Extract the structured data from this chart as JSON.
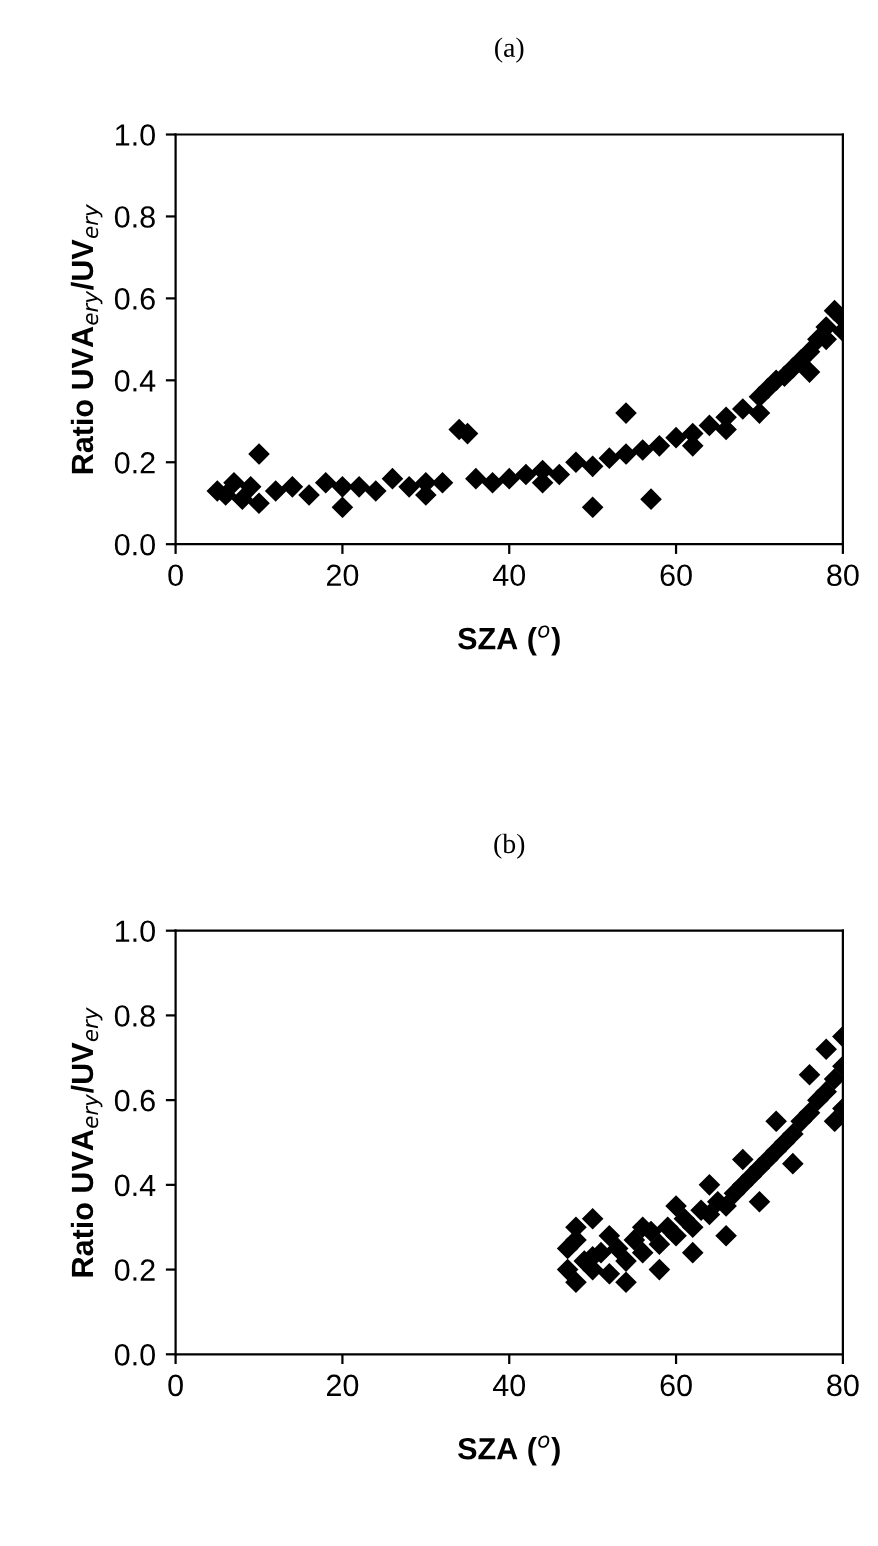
{
  "chart_data": [
    {
      "type": "scatter",
      "title": "(a)",
      "xlabel": "SZA ($^{o}$)",
      "ylabel": "Ratio UVA$_{ery}$/UV$_{ery}$",
      "marker": "diamond",
      "grid": false,
      "xlim": [
        0,
        80
      ],
      "ylim": [
        0,
        1
      ],
      "xticks": [
        0,
        20,
        40,
        60,
        80
      ],
      "yticks": [
        {
          "value": 0,
          "label": "0.0"
        },
        {
          "value": 0.2,
          "label": "0.2"
        },
        {
          "value": 0.4,
          "label": "0.4"
        },
        {
          "value": 0.6,
          "label": "0.6"
        },
        {
          "value": 0.8,
          "label": "0.8"
        },
        {
          "value": 1,
          "label": "1.0"
        }
      ],
      "series": [
        {
          "color": "#000000",
          "x": [
            5,
            6,
            7,
            8,
            9,
            10,
            10,
            12,
            14,
            16,
            18,
            20,
            20,
            22,
            24,
            26,
            28,
            30,
            32,
            34,
            35,
            36,
            38,
            40,
            42,
            44,
            46,
            48,
            50,
            50,
            52,
            54,
            54,
            56,
            57,
            58,
            60,
            62,
            64,
            66,
            68,
            70,
            71,
            72,
            73,
            74,
            75,
            76,
            77,
            78,
            79,
            80,
            76,
            78,
            80,
            70,
            66,
            62,
            44,
            30
          ],
          "values": [
            0.13,
            0.12,
            0.15,
            0.11,
            0.14,
            0.22,
            0.1,
            0.13,
            0.14,
            0.12,
            0.15,
            0.09,
            0.14,
            0.14,
            0.13,
            0.16,
            0.14,
            0.15,
            0.15,
            0.28,
            0.27,
            0.16,
            0.15,
            0.16,
            0.17,
            0.18,
            0.17,
            0.2,
            0.19,
            0.09,
            0.21,
            0.22,
            0.32,
            0.23,
            0.11,
            0.24,
            0.26,
            0.27,
            0.29,
            0.31,
            0.33,
            0.36,
            0.38,
            0.4,
            0.41,
            0.43,
            0.45,
            0.47,
            0.5,
            0.53,
            0.57,
            0.55,
            0.42,
            0.5,
            0.52,
            0.32,
            0.28,
            0.24,
            0.15,
            0.12
          ]
        }
      ]
    },
    {
      "type": "scatter",
      "title": "(b)",
      "xlabel": "SZA ($^{o}$)",
      "ylabel": "Ratio UVA$_{ery}$/UV$_{ery}$",
      "marker": "diamond",
      "grid": false,
      "xlim": [
        0,
        80
      ],
      "ylim": [
        0,
        1
      ],
      "xticks": [
        0,
        20,
        40,
        60,
        80
      ],
      "yticks": [
        {
          "value": 0,
          "label": "0.0"
        },
        {
          "value": 0.2,
          "label": "0.2"
        },
        {
          "value": 0.4,
          "label": "0.4"
        },
        {
          "value": 0.6,
          "label": "0.6"
        },
        {
          "value": 0.8,
          "label": "0.8"
        },
        {
          "value": 1,
          "label": "1.0"
        }
      ],
      "series": [
        {
          "color": "#000000",
          "x": [
            47,
            47,
            48,
            48,
            49,
            50,
            50,
            51,
            52,
            53,
            54,
            55,
            56,
            57,
            58,
            59,
            60,
            61,
            62,
            63,
            64,
            65,
            66,
            67,
            68,
            69,
            70,
            71,
            72,
            73,
            74,
            75,
            76,
            77,
            78,
            79,
            80,
            80,
            80,
            79,
            78,
            76,
            74,
            72,
            70,
            68,
            66,
            64,
            62,
            60,
            58,
            56,
            54,
            52,
            50,
            48
          ],
          "values": [
            0.2,
            0.25,
            0.17,
            0.3,
            0.22,
            0.32,
            0.2,
            0.24,
            0.19,
            0.25,
            0.22,
            0.27,
            0.24,
            0.29,
            0.26,
            0.3,
            0.28,
            0.32,
            0.3,
            0.34,
            0.33,
            0.36,
            0.35,
            0.38,
            0.4,
            0.42,
            0.44,
            0.46,
            0.48,
            0.5,
            0.52,
            0.55,
            0.57,
            0.6,
            0.62,
            0.65,
            0.68,
            0.75,
            0.58,
            0.55,
            0.72,
            0.66,
            0.45,
            0.55,
            0.36,
            0.46,
            0.28,
            0.4,
            0.24,
            0.35,
            0.2,
            0.3,
            0.17,
            0.28,
            0.23,
            0.27
          ]
        }
      ]
    }
  ]
}
